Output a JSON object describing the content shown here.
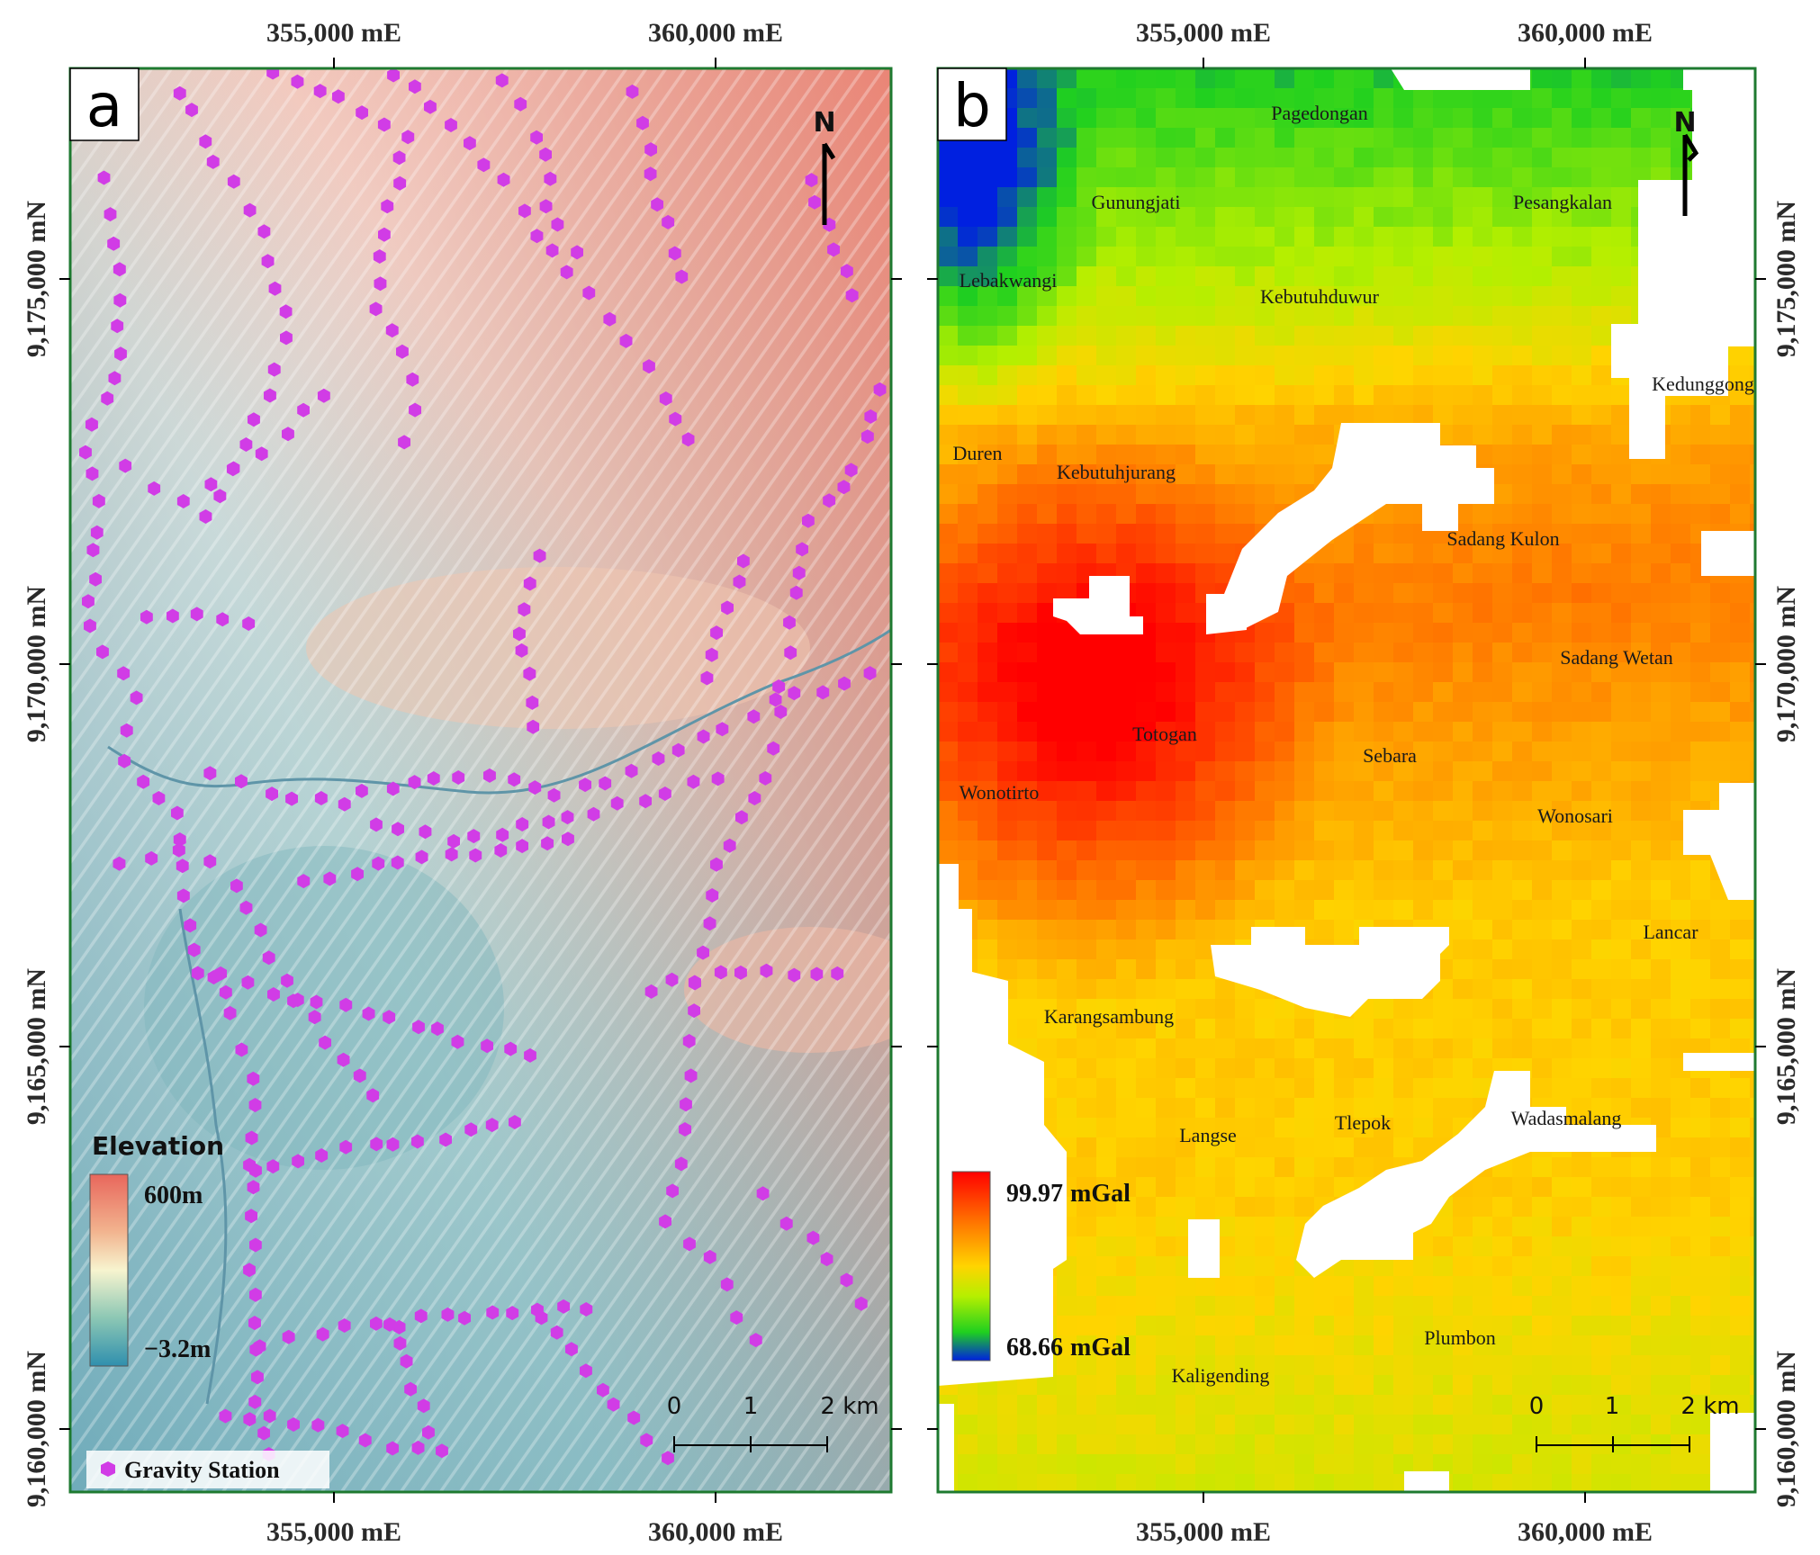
{
  "figure": {
    "x_ticks_top": [
      "355,000 mE",
      "360,000 mE"
    ],
    "x_ticks_bottom": [
      "355,000 mE",
      "360,000 mE"
    ],
    "y_ticks": [
      "9,175,000 mN",
      "9,170,000 mN",
      "9,165,000 mN",
      "9,160,000 mN"
    ]
  },
  "panel_a": {
    "letter": "a",
    "north": "N",
    "legend": {
      "title": "Elevation",
      "max_label": "600m",
      "min_label": "−3.2m",
      "ramp_colors": [
        "#e8675c",
        "#f2b48f",
        "#f7f4cf",
        "#8cc7b4",
        "#2f8fae"
      ]
    },
    "scale": [
      "0",
      "1",
      "2 km"
    ],
    "station_label": "Gravity Station",
    "station_color": "#d13ce6"
  },
  "panel_b": {
    "letter": "b",
    "north": "N",
    "legend": {
      "max_value": "99.97",
      "max_unit": "mGal",
      "min_value": "68.66",
      "min_unit": "mGal",
      "ramp_colors": [
        "#ff0000",
        "#ff7a00",
        "#ffd400",
        "#b5ef00",
        "#1fd01f",
        "#0020e0"
      ]
    },
    "scale": [
      "0",
      "1",
      "2 km"
    ],
    "places": [
      "Pagedongan",
      "Gunungjati",
      "Pesangkalan",
      "Lebakwangi",
      "Kebutuhduwur",
      "Kedunggong",
      "Duren",
      "Kebutuhjurang",
      "Sadang Kulon",
      "Sadang Wetan",
      "Totogan",
      "Sebara",
      "Wonotirto",
      "Wonosari",
      "Lancar",
      "Karangsambung",
      "Langse",
      "Tlepok",
      "Wadasmalang",
      "Plumbon",
      "Kaligending"
    ]
  }
}
